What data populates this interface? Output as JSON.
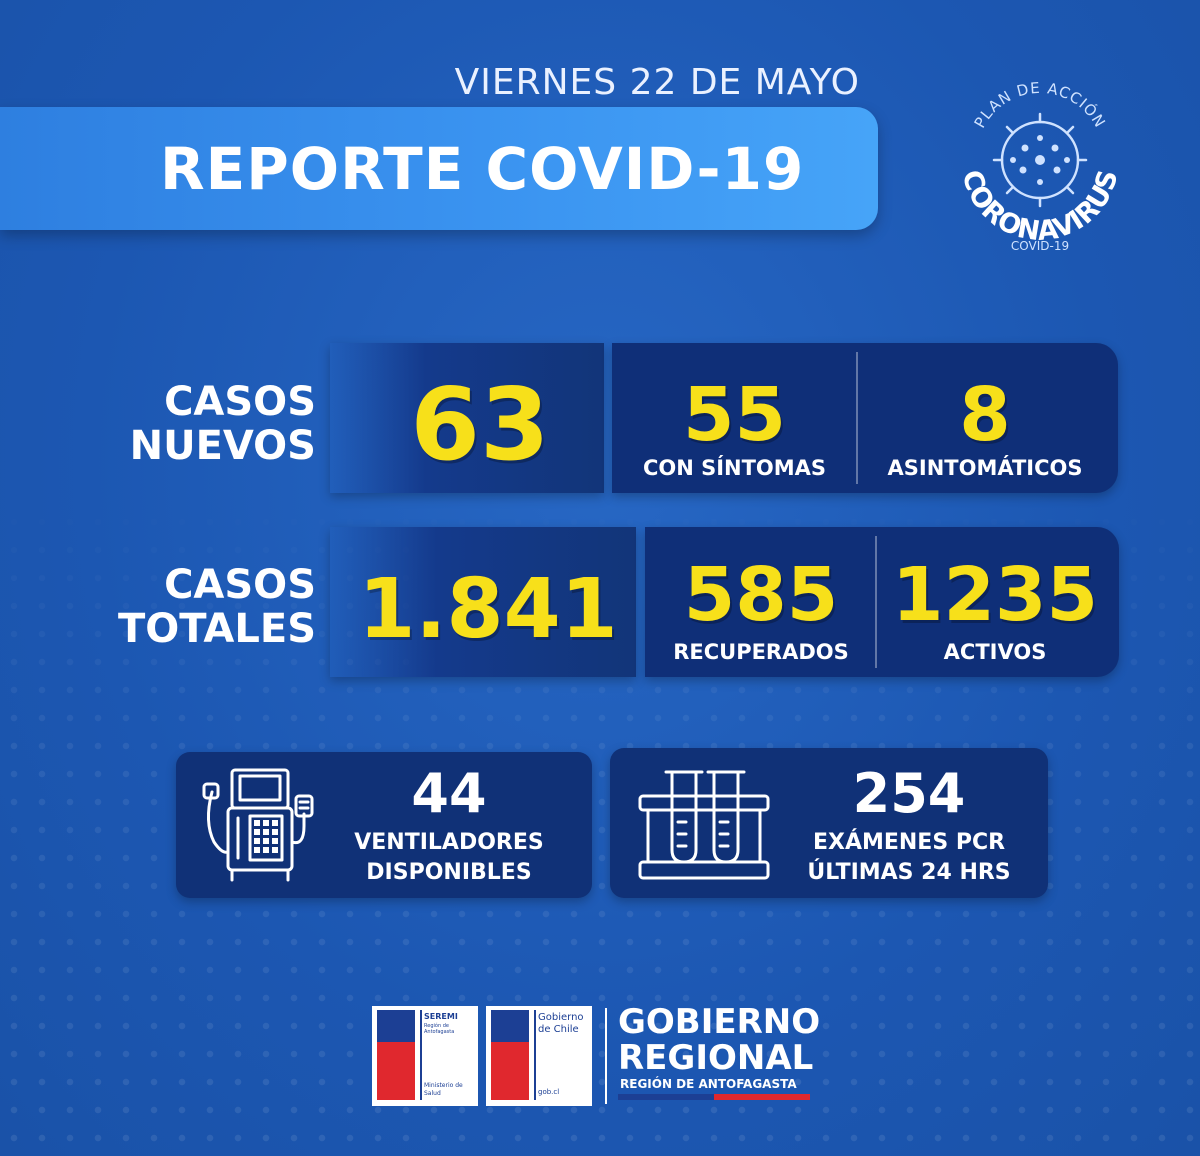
{
  "header": {
    "date": "VIERNES 22 DE MAYO",
    "title": "REPORTE COVID-19",
    "badge": {
      "top_text": "PLAN DE ACCIÓN",
      "main_text": "CORONAVIRUS",
      "bottom_text": "COVID-19"
    }
  },
  "casos_nuevos": {
    "label_line1": "CASOS",
    "label_line2": "NUEVOS",
    "total": "63",
    "con_sintomas": {
      "value": "55",
      "label": "CON SÍNTOMAS"
    },
    "asintomaticos": {
      "value": "8",
      "label": "ASINTOMÁTICOS"
    }
  },
  "casos_totales": {
    "label_line1": "CASOS",
    "label_line2": "TOTALES",
    "total": "1.841",
    "recuperados": {
      "value": "585",
      "label": "RECUPERADOS"
    },
    "activos": {
      "value": "1235",
      "label": "ACTIVOS"
    }
  },
  "ventiladores": {
    "icon": "ventilator-icon",
    "value": "44",
    "label_line1": "VENTILADORES",
    "label_line2": "DISPONIBLES"
  },
  "examenes": {
    "icon": "test-tubes-icon",
    "value": "254",
    "label_line1": "EXÁMENES PCR",
    "label_line2": "ÚLTIMAS 24 HRS"
  },
  "footer": {
    "seremi": {
      "line1": "SEREMI",
      "line2": "Región de Antofagasta",
      "bottom1": "Ministerio de",
      "bottom2": "Salud"
    },
    "gobierno_chile": {
      "line1": "Gobierno",
      "line2": "de Chile",
      "bottom": "gob.cl"
    },
    "gore": {
      "line1": "GOBIERNO",
      "line2": "REGIONAL",
      "line3": "REGIÓN DE ANTOFAGASTA"
    }
  },
  "colors": {
    "background": "#1f5bb8",
    "accent_yellow": "#f7e01a",
    "title_band": "#3a93f0",
    "panel_dark": "#0f2f78",
    "chile_red": "#e0282e",
    "chile_blue": "#1c3f94"
  }
}
